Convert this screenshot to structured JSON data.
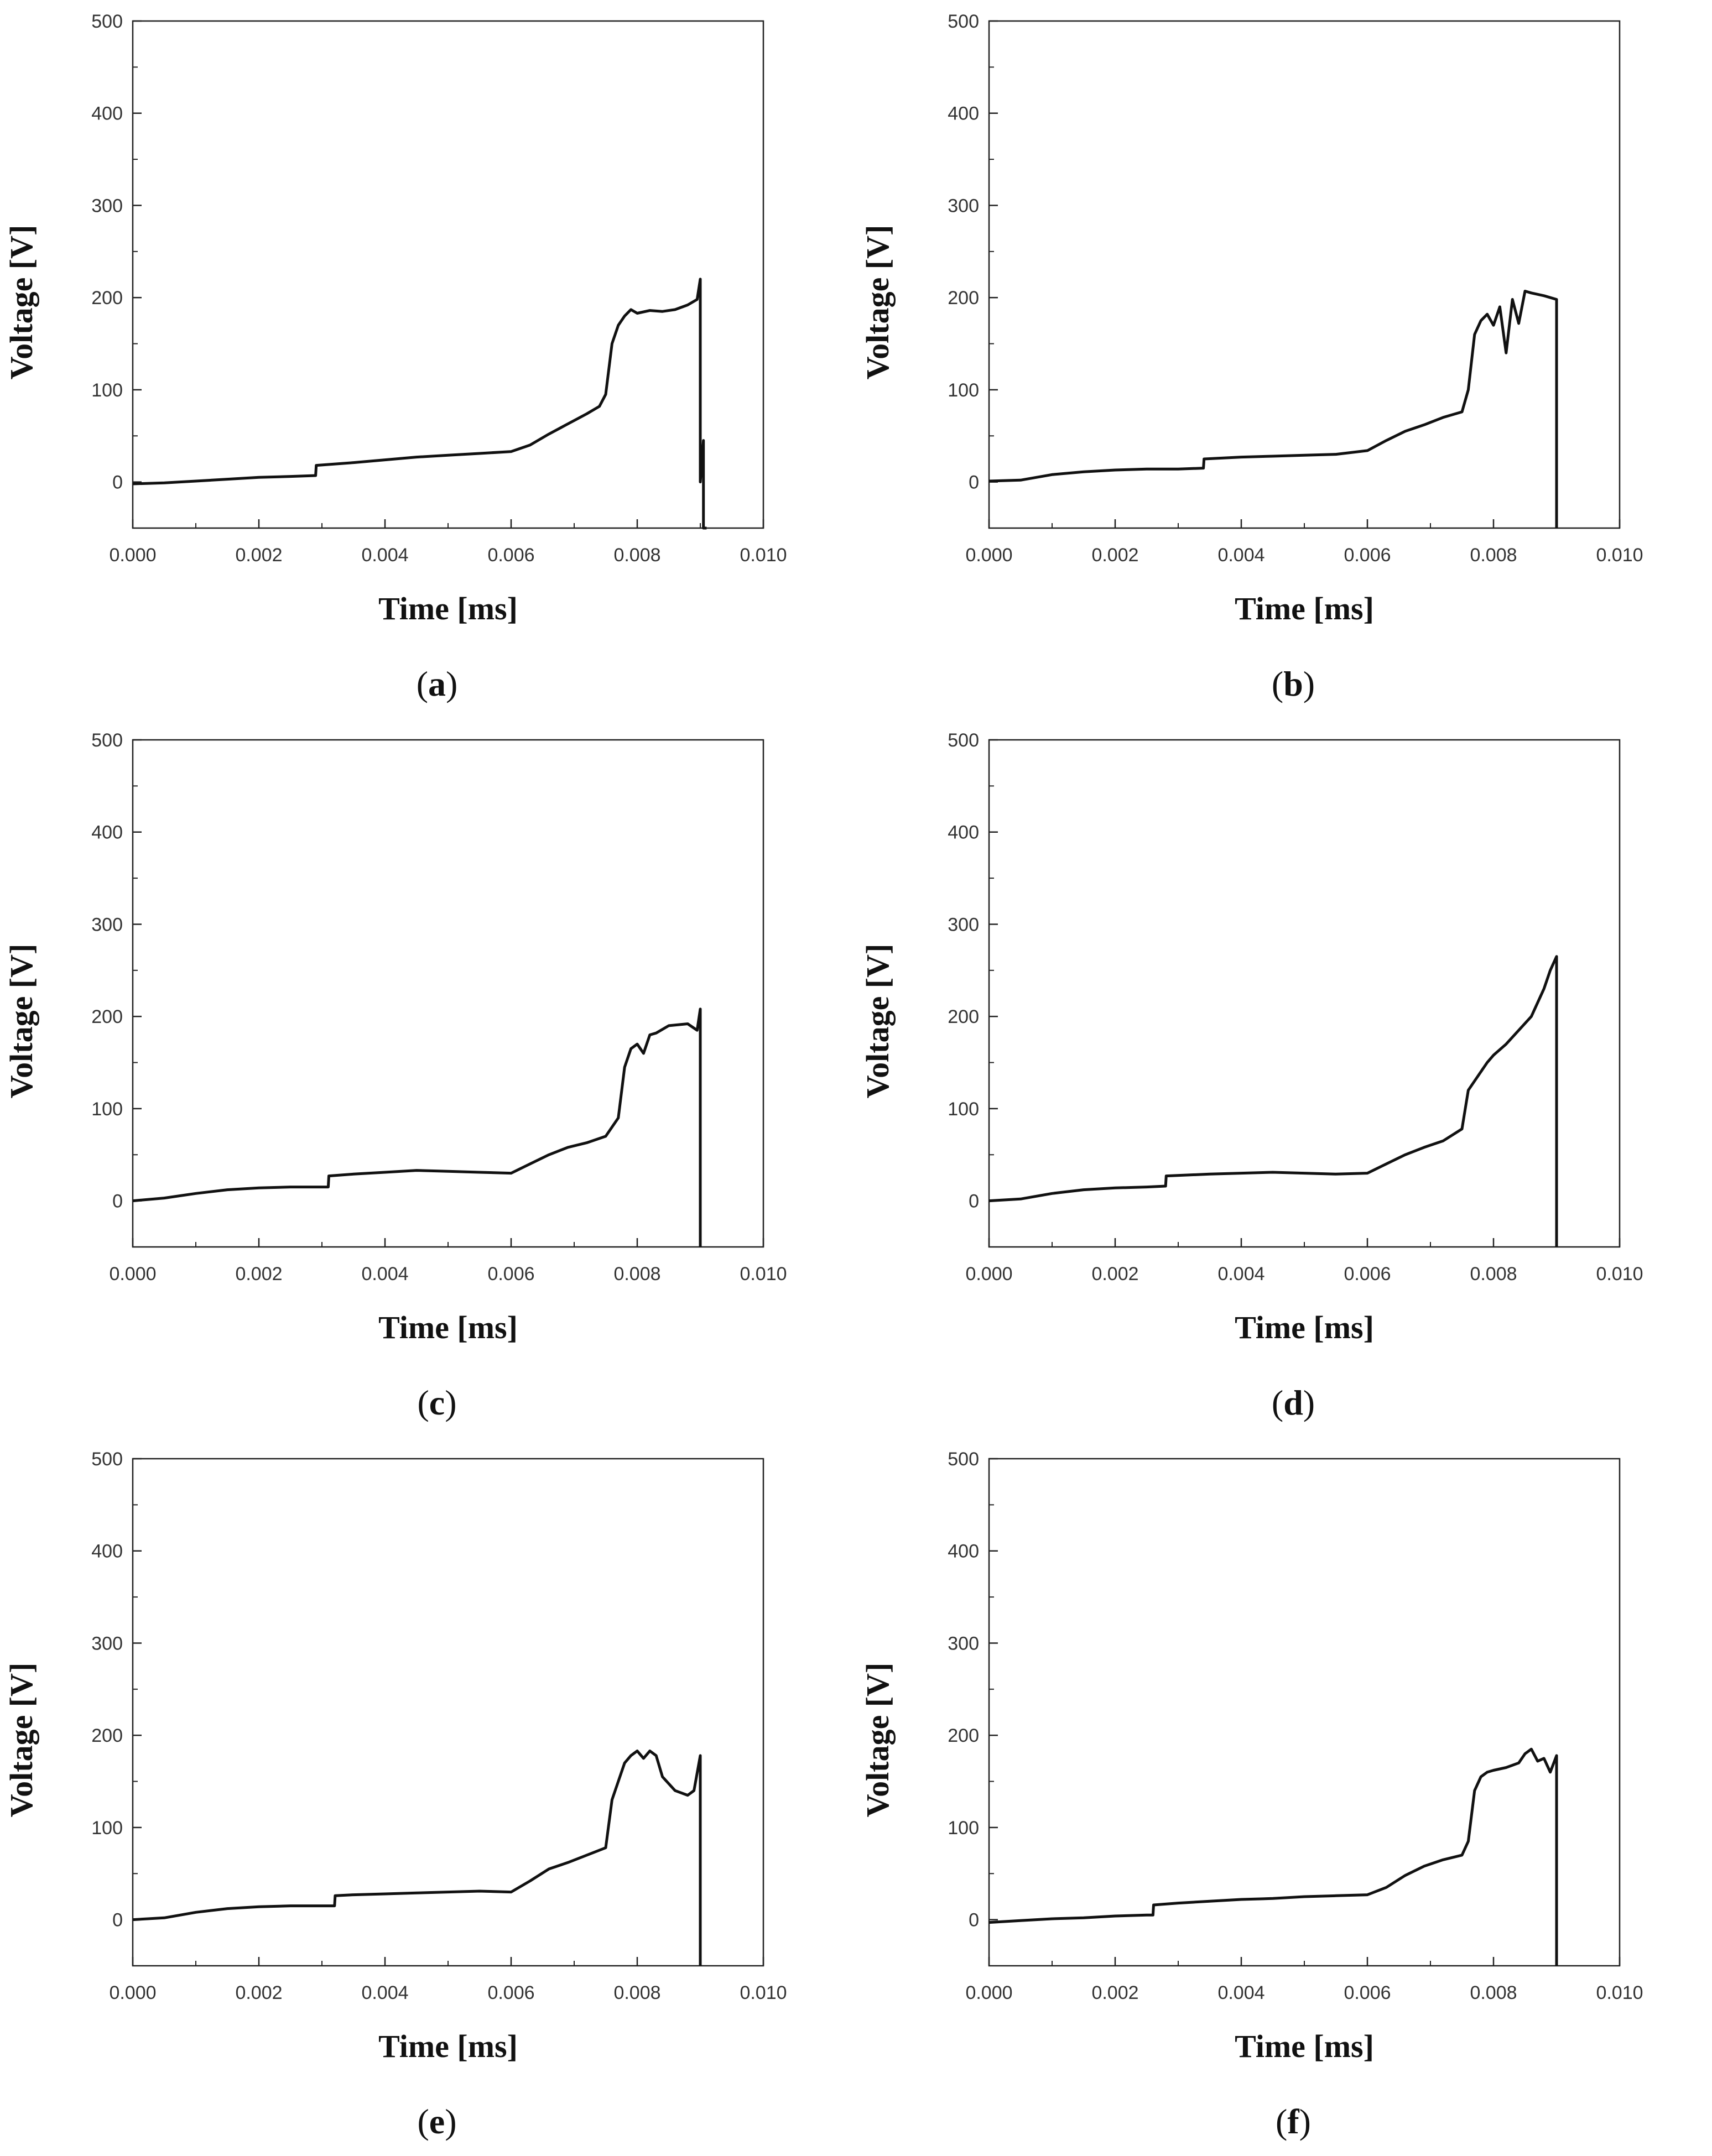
{
  "chart_data": [
    {
      "type": "line",
      "panel_label": "a",
      "caption_open": "(",
      "caption_close": ")",
      "xlabel": "Time [ms]",
      "ylabel": "Voltage [V]",
      "xlim": [
        0,
        0.01
      ],
      "ylim": [
        -50,
        500
      ],
      "xticks": [
        "0.000",
        "0.002",
        "0.004",
        "0.006",
        "0.008",
        "0.010"
      ],
      "yticks": [
        "0",
        "100",
        "200",
        "300",
        "400",
        "500"
      ],
      "series": [
        {
          "name": "Voltage",
          "x": [
            0,
            0.0005,
            0.001,
            0.0015,
            0.002,
            0.0025,
            0.0029,
            0.00291,
            0.0035,
            0.004,
            0.0045,
            0.005,
            0.0055,
            0.006,
            0.0063,
            0.0066,
            0.0069,
            0.0072,
            0.0074,
            0.0075,
            0.0076,
            0.0077,
            0.0078,
            0.0079,
            0.008,
            0.0082,
            0.0084,
            0.0086,
            0.0088,
            0.00895,
            0.009,
            0.009,
            0.00905,
            0.00905,
            0.0091
          ],
          "y": [
            -2,
            -1,
            1,
            3,
            5,
            6,
            7,
            18,
            21,
            24,
            27,
            29,
            31,
            33,
            40,
            52,
            63,
            74,
            82,
            95,
            150,
            170,
            180,
            187,
            183,
            186,
            185,
            187,
            192,
            198,
            220,
            0,
            45,
            -50,
            -50
          ]
        }
      ]
    },
    {
      "type": "line",
      "panel_label": "b",
      "caption_open": "(",
      "caption_close": ")",
      "xlabel": "Time [ms]",
      "ylabel": "Voltage [V]",
      "xlim": [
        0,
        0.01
      ],
      "ylim": [
        -50,
        500
      ],
      "xticks": [
        "0.000",
        "0.002",
        "0.004",
        "0.006",
        "0.008",
        "0.010"
      ],
      "yticks": [
        "0",
        "100",
        "200",
        "300",
        "400",
        "500"
      ],
      "series": [
        {
          "name": "Voltage",
          "x": [
            0,
            0.0005,
            0.001,
            0.0015,
            0.002,
            0.0025,
            0.003,
            0.0034,
            0.00341,
            0.004,
            0.0045,
            0.005,
            0.0055,
            0.006,
            0.0063,
            0.0066,
            0.0069,
            0.0072,
            0.0075,
            0.0076,
            0.0077,
            0.0078,
            0.0079,
            0.008,
            0.0081,
            0.0082,
            0.0083,
            0.0084,
            0.0085,
            0.0086,
            0.0088,
            0.009,
            0.009
          ],
          "y": [
            1,
            2,
            8,
            11,
            13,
            14,
            14,
            15,
            25,
            27,
            28,
            29,
            30,
            34,
            45,
            55,
            62,
            70,
            76,
            100,
            160,
            175,
            182,
            170,
            190,
            140,
            198,
            172,
            207,
            205,
            202,
            198,
            -50
          ]
        }
      ]
    },
    {
      "type": "line",
      "panel_label": "c",
      "caption_open": "(",
      "caption_close": ")",
      "xlabel": "Time [ms]",
      "ylabel": "Voltage [V]",
      "xlim": [
        0,
        0.01
      ],
      "ylim": [
        -50,
        500
      ],
      "xticks": [
        "0.000",
        "0.002",
        "0.004",
        "0.006",
        "0.008",
        "0.010"
      ],
      "yticks": [
        "0",
        "100",
        "200",
        "300",
        "400",
        "500"
      ],
      "series": [
        {
          "name": "Voltage",
          "x": [
            0,
            0.0005,
            0.001,
            0.0015,
            0.002,
            0.0025,
            0.0031,
            0.00311,
            0.0035,
            0.004,
            0.0045,
            0.005,
            0.0055,
            0.006,
            0.0063,
            0.0066,
            0.0069,
            0.0072,
            0.0075,
            0.0077,
            0.0078,
            0.0079,
            0.008,
            0.0081,
            0.0082,
            0.0083,
            0.0085,
            0.0088,
            0.00895,
            0.009,
            0.009
          ],
          "y": [
            0,
            3,
            8,
            12,
            14,
            15,
            15,
            27,
            29,
            31,
            33,
            32,
            31,
            30,
            40,
            50,
            58,
            63,
            70,
            90,
            145,
            165,
            170,
            160,
            180,
            182,
            190,
            192,
            185,
            208,
            -50
          ]
        }
      ]
    },
    {
      "type": "line",
      "panel_label": "d",
      "caption_open": "(",
      "caption_close": ")",
      "xlabel": "Time [ms]",
      "ylabel": "Voltage [V]",
      "xlim": [
        0,
        0.01
      ],
      "ylim": [
        -50,
        500
      ],
      "xticks": [
        "0.000",
        "0.002",
        "0.004",
        "0.006",
        "0.008",
        "0.010"
      ],
      "yticks": [
        "0",
        "100",
        "200",
        "300",
        "400",
        "500"
      ],
      "series": [
        {
          "name": "Voltage",
          "x": [
            0,
            0.0005,
            0.001,
            0.0015,
            0.002,
            0.0025,
            0.0028,
            0.00281,
            0.0035,
            0.004,
            0.0045,
            0.005,
            0.0055,
            0.006,
            0.0063,
            0.0066,
            0.0069,
            0.0072,
            0.0075,
            0.0076,
            0.0077,
            0.0078,
            0.0079,
            0.008,
            0.0082,
            0.0084,
            0.0086,
            0.0088,
            0.0089,
            0.009,
            0.009
          ],
          "y": [
            0,
            2,
            8,
            12,
            14,
            15,
            16,
            27,
            29,
            30,
            31,
            30,
            29,
            30,
            40,
            50,
            58,
            65,
            78,
            120,
            130,
            140,
            150,
            158,
            170,
            185,
            200,
            230,
            250,
            265,
            -50
          ]
        }
      ]
    },
    {
      "type": "line",
      "panel_label": "e",
      "caption_open": "(",
      "caption_close": ")",
      "xlabel": "Time [ms]",
      "ylabel": "Voltage [V]",
      "xlim": [
        0,
        0.01
      ],
      "ylim": [
        -50,
        500
      ],
      "xticks": [
        "0.000",
        "0.002",
        "0.004",
        "0.006",
        "0.008",
        "0.010"
      ],
      "yticks": [
        "0",
        "100",
        "200",
        "300",
        "400",
        "500"
      ],
      "series": [
        {
          "name": "Voltage",
          "x": [
            0,
            0.0005,
            0.001,
            0.0015,
            0.002,
            0.0025,
            0.0032,
            0.00321,
            0.0035,
            0.004,
            0.0045,
            0.005,
            0.0055,
            0.006,
            0.0063,
            0.0066,
            0.0069,
            0.0072,
            0.0075,
            0.0076,
            0.0077,
            0.0078,
            0.0079,
            0.008,
            0.0081,
            0.0082,
            0.0083,
            0.0084,
            0.0086,
            0.0088,
            0.0089,
            0.009,
            0.009
          ],
          "y": [
            0,
            2,
            8,
            12,
            14,
            15,
            15,
            26,
            27,
            28,
            29,
            30,
            31,
            30,
            42,
            55,
            62,
            70,
            78,
            130,
            150,
            170,
            178,
            183,
            175,
            183,
            178,
            155,
            140,
            135,
            140,
            178,
            -50
          ]
        }
      ]
    },
    {
      "type": "line",
      "panel_label": "f",
      "caption_open": "(",
      "caption_close": ")",
      "xlabel": "Time [ms]",
      "ylabel": "Voltage [V]",
      "xlim": [
        0,
        0.01
      ],
      "ylim": [
        -50,
        500
      ],
      "xticks": [
        "0.000",
        "0.002",
        "0.004",
        "0.006",
        "0.008",
        "0.010"
      ],
      "yticks": [
        "0",
        "100",
        "200",
        "300",
        "400",
        "500"
      ],
      "series": [
        {
          "name": "Voltage",
          "x": [
            0,
            0.0005,
            0.001,
            0.0015,
            0.002,
            0.0025,
            0.0026,
            0.00261,
            0.003,
            0.0035,
            0.004,
            0.0045,
            0.005,
            0.0055,
            0.006,
            0.0063,
            0.0066,
            0.0069,
            0.0072,
            0.0075,
            0.0076,
            0.0077,
            0.0078,
            0.0079,
            0.008,
            0.0082,
            0.0084,
            0.0085,
            0.0086,
            0.0087,
            0.0088,
            0.0089,
            0.009,
            0.009
          ],
          "y": [
            -3,
            -1,
            1,
            2,
            4,
            5,
            5,
            16,
            18,
            20,
            22,
            23,
            25,
            26,
            27,
            35,
            48,
            58,
            65,
            70,
            85,
            140,
            155,
            160,
            162,
            165,
            170,
            180,
            185,
            172,
            175,
            160,
            178,
            -50
          ]
        }
      ]
    }
  ]
}
